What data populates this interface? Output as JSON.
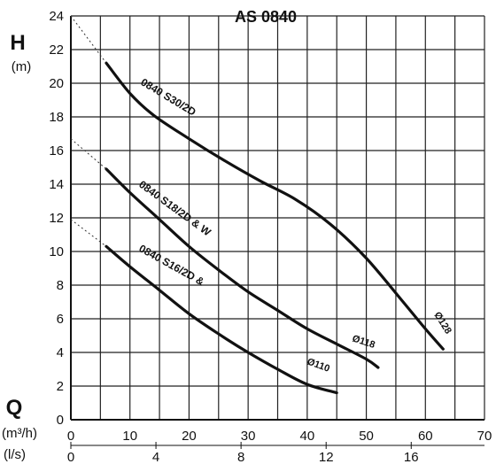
{
  "chart_data": {
    "type": "line",
    "title": "AS 0840",
    "y_axis": {
      "symbol": "H",
      "unit": "(m)",
      "min": 0,
      "max": 24,
      "step": 2,
      "ticks": [
        "0",
        "2",
        "4",
        "6",
        "8",
        "10",
        "12",
        "14",
        "16",
        "18",
        "20",
        "22",
        "24"
      ]
    },
    "x_axis": {
      "symbol": "Q",
      "unit": "(m³/h)",
      "min": 0,
      "max": 70,
      "step": 5,
      "ticks": [
        "0",
        "10",
        "20",
        "30",
        "40",
        "50",
        "60",
        "70"
      ],
      "tick_values": [
        0,
        10,
        20,
        30,
        40,
        50,
        60,
        70
      ]
    },
    "x_axis_secondary": {
      "unit": "(l/s)",
      "ticks": [
        "0",
        "4",
        "8",
        "12",
        "16"
      ],
      "tick_values": [
        0,
        4,
        8,
        12,
        16
      ],
      "factor_to_primary": 3.6
    },
    "grid": true,
    "series": [
      {
        "name": "0840 S30/2D",
        "diameter_label": "Ø128",
        "x": [
          6,
          10,
          14,
          20,
          26,
          32,
          38,
          44,
          50,
          56,
          60,
          63
        ],
        "y": [
          21.2,
          19.4,
          18.1,
          16.7,
          15.4,
          14.2,
          13.1,
          11.6,
          9.6,
          7.1,
          5.4,
          4.2
        ],
        "extrapolation": {
          "x": [
            0,
            6
          ],
          "y": [
            24,
            21.2
          ]
        }
      },
      {
        "name": "0840 S18/2D & W",
        "diameter_label": "Ø118",
        "x": [
          6,
          10,
          15,
          20,
          25,
          30,
          35,
          40,
          45,
          50,
          52
        ],
        "y": [
          14.9,
          13.5,
          11.9,
          10.3,
          8.9,
          7.6,
          6.5,
          5.4,
          4.5,
          3.6,
          3.1
        ],
        "extrapolation": {
          "x": [
            0,
            6
          ],
          "y": [
            16.7,
            14.9
          ]
        }
      },
      {
        "name": "0840 S16/2D &",
        "diameter_label": "Ø110",
        "x": [
          6,
          10,
          15,
          20,
          25,
          30,
          35,
          40,
          45
        ],
        "y": [
          10.3,
          9.1,
          7.7,
          6.3,
          5.1,
          4.0,
          3.0,
          2.1,
          1.6
        ],
        "extrapolation": {
          "x": [
            0,
            6
          ],
          "y": [
            11.9,
            10.3
          ]
        }
      }
    ]
  }
}
